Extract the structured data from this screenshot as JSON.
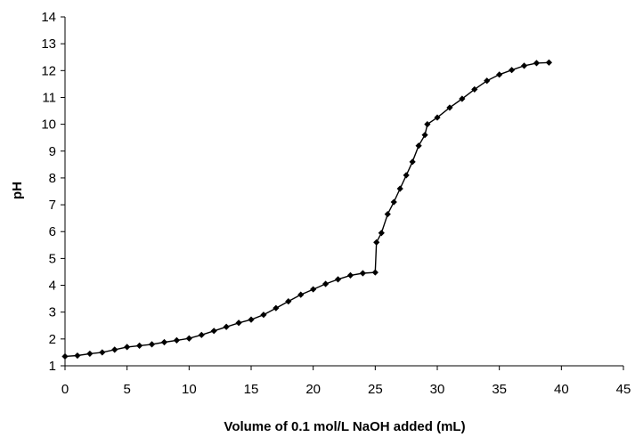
{
  "chart_data": {
    "type": "scatter",
    "xlabel": "Volume of 0.1 mol/L NaOH added (mL)",
    "ylabel": "pH",
    "xlim": [
      0,
      45
    ],
    "ylim": [
      1,
      14
    ],
    "x_ticks": [
      "0",
      "5",
      "10",
      "15",
      "20",
      "25",
      "30",
      "35",
      "40",
      "45"
    ],
    "y_ticks": [
      "1",
      "2",
      "3",
      "4",
      "5",
      "6",
      "7",
      "8",
      "9",
      "10",
      "11",
      "12",
      "13",
      "14"
    ],
    "grid": false,
    "legend": "none",
    "marker": "diamond",
    "series": [
      {
        "color": "#000000",
        "x": [
          0,
          1,
          2,
          3,
          4,
          5,
          6,
          7,
          8,
          9,
          10,
          11,
          12,
          13,
          14,
          15,
          16,
          17,
          18,
          19,
          20,
          21,
          22,
          23,
          24,
          25,
          25.1,
          25.5,
          26,
          26.5,
          27,
          27.5,
          28,
          28.5,
          29,
          29.2,
          30,
          31,
          32,
          33,
          34,
          35,
          36,
          37,
          38,
          39
        ],
        "y": [
          1.35,
          1.38,
          1.45,
          1.5,
          1.6,
          1.7,
          1.75,
          1.8,
          1.88,
          1.95,
          2.02,
          2.15,
          2.3,
          2.45,
          2.6,
          2.72,
          2.9,
          3.15,
          3.4,
          3.65,
          3.85,
          4.05,
          4.22,
          4.37,
          4.45,
          4.48,
          5.6,
          5.95,
          6.65,
          7.1,
          7.6,
          8.1,
          8.6,
          9.2,
          9.6,
          10.0,
          10.25,
          10.62,
          10.95,
          11.3,
          11.62,
          11.85,
          12.02,
          12.18,
          12.28,
          12.3
        ]
      }
    ]
  }
}
